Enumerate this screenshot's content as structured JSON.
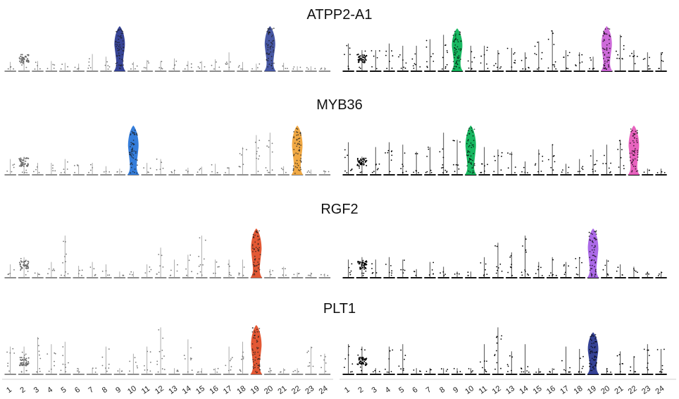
{
  "figure": {
    "titles": [
      "ATPP2-A1",
      "MYB36",
      "RGF2",
      "PLT1"
    ],
    "cluster_labels": [
      "1",
      "2",
      "3",
      "4",
      "5",
      "6",
      "7",
      "8",
      "9",
      "10",
      "11",
      "12",
      "13",
      "14",
      "15",
      "16",
      "17",
      "18",
      "19",
      "20",
      "21",
      "22",
      "23",
      "24"
    ]
  },
  "chart_data": [
    {
      "type": "violin",
      "title": "ATPP2-A1",
      "panel": "left",
      "ylim": [
        0,
        1
      ],
      "highlights": [
        {
          "cluster": 9,
          "color": "#22318c"
        },
        {
          "cluster": 20,
          "color": "#34469a"
        }
      ],
      "peak_heights": [
        0.18,
        0.3,
        0.2,
        0.2,
        0.16,
        0.14,
        0.36,
        0.3,
        1.0,
        0.18,
        0.22,
        0.2,
        0.26,
        0.2,
        0.2,
        0.24,
        0.4,
        0.18,
        0.14,
        1.0,
        0.16,
        0.08,
        0.08,
        0.06
      ]
    },
    {
      "type": "violin",
      "title": "ATPP2-A1",
      "panel": "right",
      "ylim": [
        0,
        1
      ],
      "highlights": [
        {
          "cluster": 9,
          "color": "#00b050"
        },
        {
          "cluster": 20,
          "color": "#c95bd6"
        }
      ],
      "peak_heights": [
        0.6,
        0.45,
        0.45,
        0.6,
        0.55,
        0.55,
        0.7,
        0.8,
        0.95,
        0.55,
        0.55,
        0.45,
        0.5,
        0.4,
        0.65,
        0.9,
        0.45,
        0.4,
        0.3,
        1.0,
        0.8,
        0.45,
        0.4,
        0.4
      ]
    },
    {
      "type": "violin",
      "title": "MYB36",
      "panel": "left",
      "ylim": [
        0,
        1
      ],
      "highlights": [
        {
          "cluster": 10,
          "color": "#1f6fd6"
        },
        {
          "cluster": 22,
          "color": "#f0a030"
        }
      ],
      "peak_heights": [
        0.3,
        0.35,
        0.22,
        0.22,
        0.3,
        0.18,
        0.22,
        0.15,
        0.1,
        1.0,
        0.22,
        0.3,
        0.08,
        0.12,
        0.14,
        0.2,
        0.12,
        0.55,
        0.8,
        0.85,
        0.15,
        1.0,
        0.08,
        0.06
      ]
    },
    {
      "type": "violin",
      "title": "MYB36",
      "panel": "right",
      "ylim": [
        0,
        1
      ],
      "highlights": [
        {
          "cluster": 10,
          "color": "#00b050"
        },
        {
          "cluster": 22,
          "color": "#e552b8"
        }
      ],
      "peak_heights": [
        0.65,
        0.35,
        0.55,
        0.65,
        0.6,
        0.45,
        0.55,
        0.85,
        0.7,
        1.0,
        0.55,
        0.5,
        0.45,
        0.25,
        0.5,
        0.6,
        0.2,
        0.3,
        0.5,
        0.6,
        0.7,
        1.0,
        0.1,
        0.1
      ]
    },
    {
      "type": "violin",
      "title": "RGF2",
      "panel": "left",
      "ylim": [
        0,
        1
      ],
      "highlights": [
        {
          "cluster": 19,
          "color": "#e0461e"
        }
      ],
      "peak_heights": [
        0.25,
        0.4,
        0.08,
        0.3,
        0.85,
        0.22,
        0.3,
        0.25,
        0.1,
        0.1,
        0.25,
        0.6,
        0.35,
        0.45,
        0.85,
        0.35,
        0.35,
        0.35,
        1.0,
        0.15,
        0.2,
        0.08,
        0.08,
        0.06
      ]
    },
    {
      "type": "violin",
      "title": "RGF2",
      "panel": "right",
      "ylim": [
        0,
        1
      ],
      "highlights": [
        {
          "cluster": 19,
          "color": "#a35ae6"
        }
      ],
      "peak_heights": [
        0.35,
        0.4,
        0.35,
        0.4,
        0.35,
        0.15,
        0.3,
        0.2,
        0.1,
        0.1,
        0.4,
        0.7,
        0.5,
        0.85,
        0.3,
        0.4,
        0.3,
        0.4,
        1.0,
        0.35,
        0.25,
        0.2,
        0.1,
        0.1
      ]
    },
    {
      "type": "violin",
      "title": "PLT1",
      "panel": "left",
      "ylim": [
        0,
        1
      ],
      "highlights": [
        {
          "cluster": 19,
          "color": "#e0461e"
        }
      ],
      "peak_heights": [
        0.55,
        0.55,
        0.75,
        0.6,
        0.65,
        0.1,
        0.1,
        0.55,
        0.1,
        0.4,
        0.55,
        0.95,
        0.1,
        0.7,
        0.1,
        0.1,
        0.55,
        0.65,
        1.0,
        0.1,
        0.1,
        0.1,
        0.55,
        0.4
      ]
    },
    {
      "type": "violin",
      "title": "PLT1",
      "panel": "right",
      "ylim": [
        0,
        1
      ],
      "highlights": [
        {
          "cluster": 19,
          "color": "#1f2e8a"
        }
      ],
      "peak_heights": [
        0.6,
        0.55,
        0.1,
        0.55,
        0.6,
        0.1,
        0.1,
        0.1,
        0.1,
        0.1,
        0.6,
        0.95,
        0.45,
        0.6,
        0.1,
        0.1,
        0.55,
        0.5,
        0.85,
        0.1,
        0.45,
        0.35,
        0.6,
        0.5
      ]
    }
  ]
}
